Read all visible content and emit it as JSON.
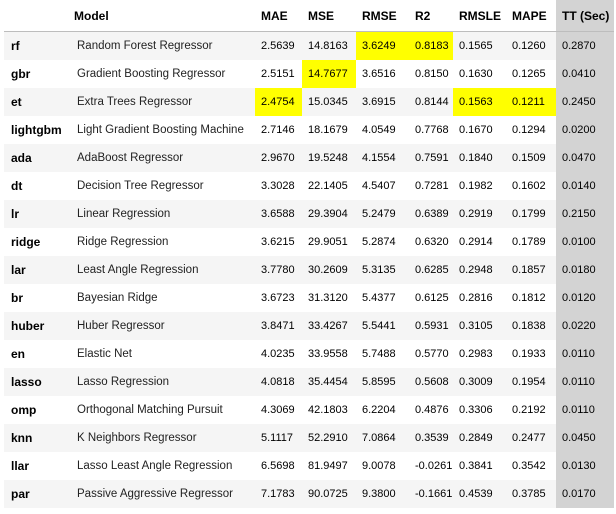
{
  "table": {
    "headers": [
      "",
      "Model",
      "MAE",
      "MSE",
      "RMSE",
      "R2",
      "RMSLE",
      "MAPE",
      "TT (Sec)"
    ],
    "rows": [
      {
        "id": "rf",
        "model": "Random Forest Regressor",
        "values": [
          "2.5639",
          "14.8163",
          "3.6249",
          "0.8183",
          "0.1565",
          "0.1260",
          "0.2870"
        ],
        "highlight": [
          2,
          3
        ]
      },
      {
        "id": "gbr",
        "model": "Gradient Boosting Regressor",
        "values": [
          "2.5151",
          "14.7677",
          "3.6516",
          "0.8150",
          "0.1630",
          "0.1265",
          "0.0410"
        ],
        "highlight": [
          1
        ]
      },
      {
        "id": "et",
        "model": "Extra Trees Regressor",
        "values": [
          "2.4754",
          "15.0345",
          "3.6915",
          "0.8144",
          "0.1563",
          "0.1211",
          "0.2450"
        ],
        "highlight": [
          0,
          4,
          5
        ]
      },
      {
        "id": "lightgbm",
        "model": "Light Gradient Boosting Machine",
        "values": [
          "2.7146",
          "18.1679",
          "4.0549",
          "0.7768",
          "0.1670",
          "0.1294",
          "0.0200"
        ],
        "highlight": []
      },
      {
        "id": "ada",
        "model": "AdaBoost Regressor",
        "values": [
          "2.9670",
          "19.5248",
          "4.1554",
          "0.7591",
          "0.1840",
          "0.1509",
          "0.0470"
        ],
        "highlight": []
      },
      {
        "id": "dt",
        "model": "Decision Tree Regressor",
        "values": [
          "3.3028",
          "22.1405",
          "4.5407",
          "0.7281",
          "0.1982",
          "0.1602",
          "0.0140"
        ],
        "highlight": []
      },
      {
        "id": "lr",
        "model": "Linear Regression",
        "values": [
          "3.6588",
          "29.3904",
          "5.2479",
          "0.6389",
          "0.2919",
          "0.1799",
          "0.2150"
        ],
        "highlight": []
      },
      {
        "id": "ridge",
        "model": "Ridge Regression",
        "values": [
          "3.6215",
          "29.9051",
          "5.2874",
          "0.6320",
          "0.2914",
          "0.1789",
          "0.0100"
        ],
        "highlight": []
      },
      {
        "id": "lar",
        "model": "Least Angle Regression",
        "values": [
          "3.7780",
          "30.2609",
          "5.3135",
          "0.6285",
          "0.2948",
          "0.1857",
          "0.0180"
        ],
        "highlight": []
      },
      {
        "id": "br",
        "model": "Bayesian Ridge",
        "values": [
          "3.6723",
          "31.3120",
          "5.4377",
          "0.6125",
          "0.2816",
          "0.1812",
          "0.0120"
        ],
        "highlight": []
      },
      {
        "id": "huber",
        "model": "Huber Regressor",
        "values": [
          "3.8471",
          "33.4267",
          "5.5441",
          "0.5931",
          "0.3105",
          "0.1838",
          "0.0220"
        ],
        "highlight": []
      },
      {
        "id": "en",
        "model": "Elastic Net",
        "values": [
          "4.0235",
          "33.9558",
          "5.7488",
          "0.5770",
          "0.2983",
          "0.1933",
          "0.0110"
        ],
        "highlight": []
      },
      {
        "id": "lasso",
        "model": "Lasso Regression",
        "values": [
          "4.0818",
          "35.4454",
          "5.8595",
          "0.5608",
          "0.3009",
          "0.1954",
          "0.0110"
        ],
        "highlight": []
      },
      {
        "id": "omp",
        "model": "Orthogonal Matching Pursuit",
        "values": [
          "4.3069",
          "42.1803",
          "6.2204",
          "0.4876",
          "0.3306",
          "0.2192",
          "0.0110"
        ],
        "highlight": []
      },
      {
        "id": "knn",
        "model": "K Neighbors Regressor",
        "values": [
          "5.1117",
          "52.2910",
          "7.0864",
          "0.3539",
          "0.2849",
          "0.2477",
          "0.0450"
        ],
        "highlight": []
      },
      {
        "id": "llar",
        "model": "Lasso Least Angle Regression",
        "values": [
          "6.5698",
          "81.9497",
          "9.0078",
          "-0.0261",
          "0.3841",
          "0.3542",
          "0.0130"
        ],
        "highlight": []
      },
      {
        "id": "par",
        "model": "Passive Aggressive Regressor",
        "values": [
          "7.1783",
          "90.0725",
          "9.3800",
          "-0.1661",
          "0.4539",
          "0.3785",
          "0.0170"
        ],
        "highlight": []
      }
    ]
  },
  "colors": {
    "highlight": "#ffff00",
    "tt_column": "#d3d3d3",
    "stripe": "#f5f5f5"
  }
}
